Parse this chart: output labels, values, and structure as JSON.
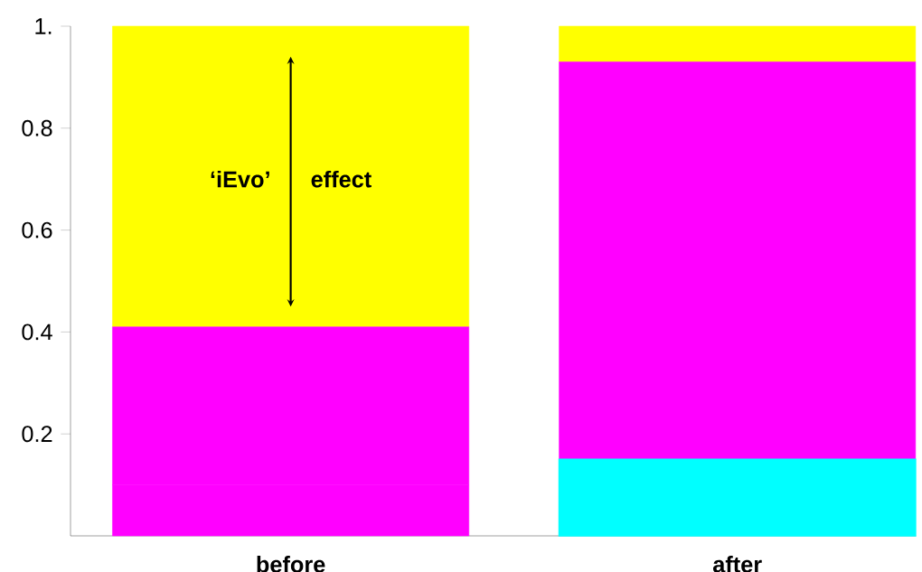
{
  "chart_data": {
    "type": "bar",
    "stacked": true,
    "categories": [
      "before",
      "after"
    ],
    "series": [
      {
        "color": "#ff00ff",
        "values": [
          0.1,
          0
        ]
      },
      {
        "color": "#00ffff",
        "values": [
          0,
          0.15
        ]
      },
      {
        "color": "#ff00ff",
        "values": [
          0.31,
          0.78
        ]
      },
      {
        "color": "#ffff00",
        "values": [
          0.59,
          0.07
        ]
      }
    ],
    "ylim": [
      0,
      1
    ],
    "yticks": [
      0.2,
      0.4,
      0.6,
      0.8,
      {
        "value": 1,
        "label": "1."
      }
    ],
    "annotations": [
      "‘iEvo’",
      "effect"
    ],
    "grid": false
  }
}
